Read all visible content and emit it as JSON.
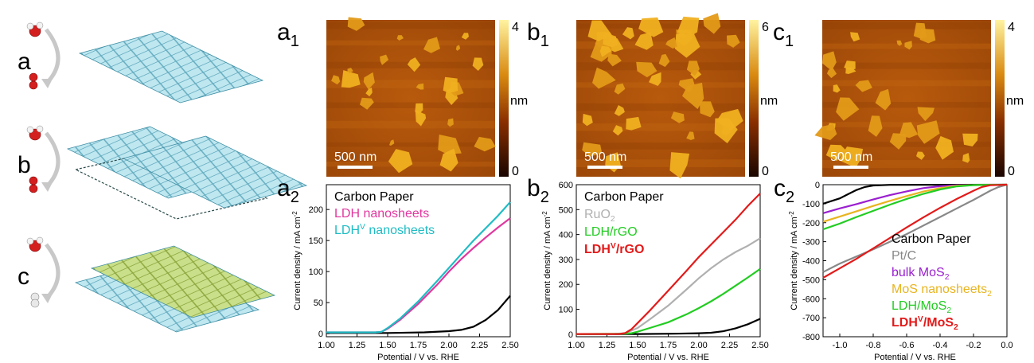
{
  "schematics": {
    "labels": [
      "a",
      "b",
      "c"
    ]
  },
  "afm": [
    {
      "panel": "a",
      "sub": "1",
      "scale_bar": "500 nm",
      "cbar_max": "4",
      "cbar_min": "0",
      "unit": "nm"
    },
    {
      "panel": "b",
      "sub": "1",
      "scale_bar": "500 nm",
      "cbar_max": "6",
      "cbar_min": "0",
      "unit": "nm"
    },
    {
      "panel": "c",
      "sub": "1",
      "scale_bar": "500 nm",
      "cbar_max": "4",
      "cbar_min": "0",
      "unit": "nm"
    }
  ],
  "colors": {
    "black": "#000000",
    "magenta": "#e0379f",
    "cyan": "#1fbcc4",
    "gray": "#b0b0b0",
    "gray_dark": "#888888",
    "green": "#22cc22",
    "red": "#e31a1a",
    "purple": "#9b1fd0",
    "gold": "#e8b420"
  },
  "chart_data": [
    {
      "panel": "a",
      "sub": "2",
      "type": "line",
      "xlabel": "Potential / V vs. RHE",
      "ylabel": "Current density / mA cm",
      "ylabel_sup": "-2",
      "xlim": [
        1.0,
        2.5
      ],
      "ylim": [
        -5,
        240
      ],
      "xticks": [
        "1.00",
        "1.25",
        "1.50",
        "1.75",
        "2.00",
        "2.25",
        "2.50"
      ],
      "yticks": [
        "0",
        "50",
        "100",
        "150",
        "200"
      ],
      "series": [
        {
          "name": "Carbon Paper",
          "color": "#000000",
          "points": [
            [
              1.0,
              1
            ],
            [
              1.5,
              1
            ],
            [
              1.8,
              2
            ],
            [
              2.0,
              4
            ],
            [
              2.1,
              6
            ],
            [
              2.2,
              11
            ],
            [
              2.3,
              22
            ],
            [
              2.4,
              38
            ],
            [
              2.5,
              61
            ]
          ]
        },
        {
          "name": "LDH nanosheets",
          "color": "#e0379f",
          "points": [
            [
              1.0,
              2
            ],
            [
              1.4,
              2
            ],
            [
              1.45,
              3
            ],
            [
              1.5,
              8
            ],
            [
              1.6,
              22
            ],
            [
              1.75,
              48
            ],
            [
              1.9,
              78
            ],
            [
              2.0,
              100
            ],
            [
              2.1,
              120
            ],
            [
              2.2,
              138
            ],
            [
              2.3,
              155
            ],
            [
              2.4,
              171
            ],
            [
              2.5,
              186
            ]
          ]
        },
        {
          "name": "LDH",
          "sup": "V",
          "suffix": " nanosheets",
          "color": "#1fbcc4",
          "points": [
            [
              1.0,
              2
            ],
            [
              1.4,
              2
            ],
            [
              1.45,
              3
            ],
            [
              1.5,
              9
            ],
            [
              1.6,
              24
            ],
            [
              1.75,
              52
            ],
            [
              1.9,
              84
            ],
            [
              2.0,
              106
            ],
            [
              2.1,
              128
            ],
            [
              2.2,
              150
            ],
            [
              2.3,
              170
            ],
            [
              2.4,
              190
            ],
            [
              2.5,
              212
            ]
          ]
        }
      ]
    },
    {
      "panel": "b",
      "sub": "2",
      "type": "line",
      "xlabel": "Potential / V vs. RHE",
      "ylabel": "Current density / mA cm",
      "ylabel_sup": "-2",
      "xlim": [
        1.0,
        2.5
      ],
      "ylim": [
        -10,
        600
      ],
      "xticks": [
        "1.00",
        "1.25",
        "1.50",
        "1.75",
        "2.00",
        "2.25",
        "2.50"
      ],
      "yticks": [
        "0",
        "100",
        "200",
        "300",
        "400",
        "500",
        "600"
      ],
      "series": [
        {
          "name": "Carbon Paper",
          "color": "#000000",
          "points": [
            [
              1.0,
              1
            ],
            [
              1.5,
              1
            ],
            [
              1.8,
              2
            ],
            [
              2.0,
              4
            ],
            [
              2.1,
              6
            ],
            [
              2.2,
              12
            ],
            [
              2.3,
              24
            ],
            [
              2.4,
              40
            ],
            [
              2.5,
              62
            ]
          ]
        },
        {
          "name": "RuO",
          "sub": "2",
          "color": "#b0b0b0",
          "points": [
            [
              1.0,
              1
            ],
            [
              1.3,
              1
            ],
            [
              1.4,
              4
            ],
            [
              1.5,
              25
            ],
            [
              1.6,
              60
            ],
            [
              1.75,
              115
            ],
            [
              1.9,
              180
            ],
            [
              2.0,
              225
            ],
            [
              2.1,
              265
            ],
            [
              2.2,
              300
            ],
            [
              2.3,
              330
            ],
            [
              2.4,
              355
            ],
            [
              2.5,
              385
            ]
          ]
        },
        {
          "name": "LDH/rGO",
          "color": "#22cc22",
          "points": [
            [
              1.0,
              1
            ],
            [
              1.4,
              2
            ],
            [
              1.45,
              4
            ],
            [
              1.5,
              10
            ],
            [
              1.6,
              25
            ],
            [
              1.75,
              48
            ],
            [
              1.9,
              80
            ],
            [
              2.0,
              105
            ],
            [
              2.1,
              132
            ],
            [
              2.2,
              162
            ],
            [
              2.3,
              195
            ],
            [
              2.4,
              228
            ],
            [
              2.5,
              262
            ]
          ]
        },
        {
          "name": "LDH",
          "sup": "V",
          "suffix": "/rGO",
          "bold": true,
          "color": "#e31a1a",
          "points": [
            [
              1.0,
              1
            ],
            [
              1.35,
              1
            ],
            [
              1.4,
              5
            ],
            [
              1.45,
              20
            ],
            [
              1.5,
              45
            ],
            [
              1.6,
              95
            ],
            [
              1.75,
              175
            ],
            [
              1.9,
              255
            ],
            [
              2.0,
              310
            ],
            [
              2.1,
              360
            ],
            [
              2.2,
              410
            ],
            [
              2.3,
              460
            ],
            [
              2.4,
              515
            ],
            [
              2.5,
              565
            ]
          ]
        }
      ]
    },
    {
      "panel": "c",
      "sub": "2",
      "type": "line",
      "xlabel": "Potential / V vs. RHE",
      "ylabel": "Current density / mA cm",
      "ylabel_sup": "-2",
      "xlim": [
        -1.1,
        0.0
      ],
      "ylim": [
        -800,
        0
      ],
      "xticks": [
        "-1.0",
        "-0.8",
        "-0.6",
        "-0.4",
        "-0.2",
        "0.0"
      ],
      "xtick_values": [
        -1.0,
        -0.8,
        -0.6,
        -0.4,
        -0.2,
        0.0
      ],
      "yticks": [
        "0",
        "-100",
        "-200",
        "-300",
        "-400",
        "-500",
        "-600",
        "-700",
        "-800"
      ],
      "series": [
        {
          "name": "Carbon Paper",
          "color": "#000000",
          "points": [
            [
              -1.1,
              -100
            ],
            [
              -1.0,
              -72
            ],
            [
              -0.95,
              -50
            ],
            [
              -0.9,
              -28
            ],
            [
              -0.85,
              -12
            ],
            [
              -0.8,
              -4
            ],
            [
              -0.7,
              -1
            ],
            [
              0.0,
              0
            ]
          ]
        },
        {
          "name": "Pt/C",
          "color": "#888888",
          "points": [
            [
              -1.1,
              -460
            ],
            [
              -1.0,
              -415
            ],
            [
              -0.8,
              -340
            ],
            [
              -0.6,
              -260
            ],
            [
              -0.4,
              -170
            ],
            [
              -0.3,
              -125
            ],
            [
              -0.2,
              -80
            ],
            [
              -0.1,
              -32
            ],
            [
              -0.05,
              -12
            ],
            [
              0.0,
              0
            ]
          ]
        },
        {
          "name": "bulk MoS",
          "sub": "2",
          "color": "#9b1fd0",
          "points": [
            [
              -1.1,
              -150
            ],
            [
              -1.0,
              -125
            ],
            [
              -0.9,
              -102
            ],
            [
              -0.8,
              -78
            ],
            [
              -0.7,
              -55
            ],
            [
              -0.6,
              -35
            ],
            [
              -0.5,
              -18
            ],
            [
              -0.4,
              -8
            ],
            [
              -0.3,
              -3
            ],
            [
              0.0,
              0
            ]
          ]
        },
        {
          "name": "MoS",
          "sub": "2",
          "suffix": " nanosheets",
          "color": "#e8b420",
          "points": [
            [
              -1.1,
              -195
            ],
            [
              -1.0,
              -168
            ],
            [
              -0.9,
              -140
            ],
            [
              -0.8,
              -112
            ],
            [
              -0.7,
              -85
            ],
            [
              -0.6,
              -60
            ],
            [
              -0.5,
              -36
            ],
            [
              -0.4,
              -18
            ],
            [
              -0.3,
              -6
            ],
            [
              -0.2,
              -2
            ],
            [
              0.0,
              0
            ]
          ]
        },
        {
          "name": "LDH/MoS",
          "sub": "2",
          "color": "#22cc22",
          "points": [
            [
              -1.1,
              -235
            ],
            [
              -1.0,
              -205
            ],
            [
              -0.9,
              -170
            ],
            [
              -0.8,
              -138
            ],
            [
              -0.7,
              -105
            ],
            [
              -0.6,
              -75
            ],
            [
              -0.5,
              -48
            ],
            [
              -0.4,
              -25
            ],
            [
              -0.3,
              -9
            ],
            [
              -0.2,
              -2
            ],
            [
              0.0,
              0
            ]
          ]
        },
        {
          "name": "LDH",
          "sup": "V",
          "suffix": "/MoS",
          "sub": "2",
          "bold": true,
          "color": "#e31a1a",
          "points": [
            [
              -1.1,
              -490
            ],
            [
              -1.0,
              -440
            ],
            [
              -0.9,
              -390
            ],
            [
              -0.8,
              -335
            ],
            [
              -0.7,
              -280
            ],
            [
              -0.6,
              -225
            ],
            [
              -0.5,
              -172
            ],
            [
              -0.4,
              -122
            ],
            [
              -0.3,
              -75
            ],
            [
              -0.2,
              -32
            ],
            [
              -0.15,
              -12
            ],
            [
              -0.1,
              -3
            ],
            [
              0.0,
              0
            ]
          ]
        }
      ]
    }
  ]
}
